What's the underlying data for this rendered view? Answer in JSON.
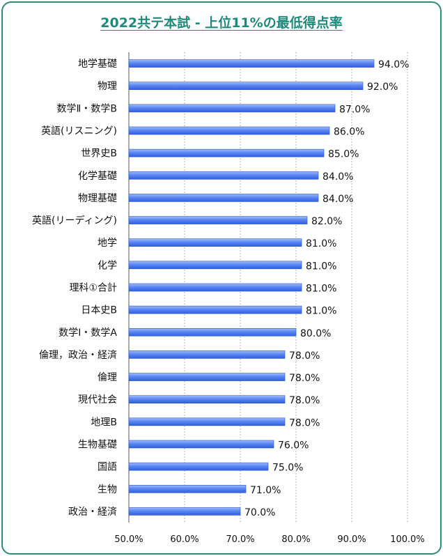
{
  "chart_data": {
    "type": "bar",
    "orientation": "horizontal",
    "title": "2022共テ本試 - 上位11%の最低得点率",
    "categories": [
      "地学基礎",
      "物理",
      "数学Ⅱ・数学B",
      "英語(リスニング)",
      "世界史B",
      "化学基礎",
      "物理基礎",
      "英語(リーディング)",
      "地学",
      "化学",
      "理科①合計",
      "日本史B",
      "数学Ⅰ・数学A",
      "倫理，政治・経済",
      "倫理",
      "現代社会",
      "地理B",
      "生物基礎",
      "国語",
      "生物",
      "政治・経済"
    ],
    "values": [
      94.0,
      92.0,
      87.0,
      86.0,
      85.0,
      84.0,
      84.0,
      82.0,
      81.0,
      81.0,
      81.0,
      81.0,
      80.0,
      78.0,
      78.0,
      78.0,
      78.0,
      76.0,
      75.0,
      71.0,
      70.0
    ],
    "value_labels": [
      "94.0%",
      "92.0%",
      "87.0%",
      "86.0%",
      "85.0%",
      "84.0%",
      "84.0%",
      "82.0%",
      "81.0%",
      "81.0%",
      "81.0%",
      "81.0%",
      "80.0%",
      "78.0%",
      "78.0%",
      "78.0%",
      "78.0%",
      "76.0%",
      "75.0%",
      "71.0%",
      "70.0%"
    ],
    "xlim": [
      50,
      100
    ],
    "xticks": [
      "50.0%",
      "60.0%",
      "70.0%",
      "80.0%",
      "90.0%",
      "100.0%"
    ],
    "xlabel": "",
    "ylabel": "",
    "grid": true,
    "bar_color": "#4f7ff0",
    "title_color": "#1e8a7a",
    "border_color": "#2e8b7a"
  }
}
